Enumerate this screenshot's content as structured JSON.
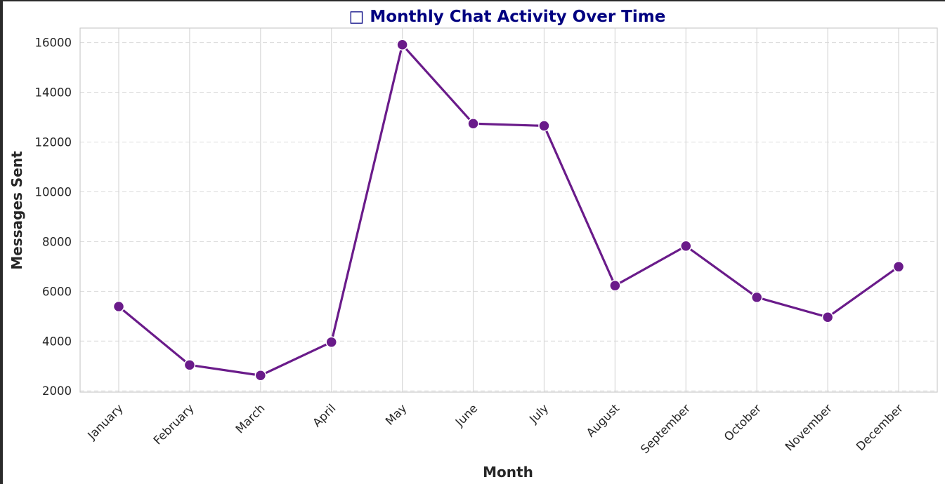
{
  "chart_data": {
    "type": "line",
    "title": "□ Monthly Chat Activity Over Time",
    "xlabel": "Month",
    "ylabel": "Messages Sent",
    "categories": [
      "January",
      "February",
      "March",
      "April",
      "May",
      "June",
      "July",
      "August",
      "September",
      "October",
      "November",
      "December"
    ],
    "series": [
      {
        "values": [
          5390,
          3040,
          2620,
          3960,
          15910,
          12740,
          12650,
          6230,
          7820,
          5760,
          4960,
          6990
        ]
      }
    ],
    "y_ticks": [
      2000,
      4000,
      6000,
      8000,
      10000,
      12000,
      14000,
      16000
    ],
    "ylim": [
      1950,
      16580
    ],
    "grid": true,
    "legend": "none",
    "line_color": "#6a1b8a",
    "marker_color": "#6a1b8a",
    "marker_edge_color": "#ffffff",
    "title_color": "#000080"
  }
}
